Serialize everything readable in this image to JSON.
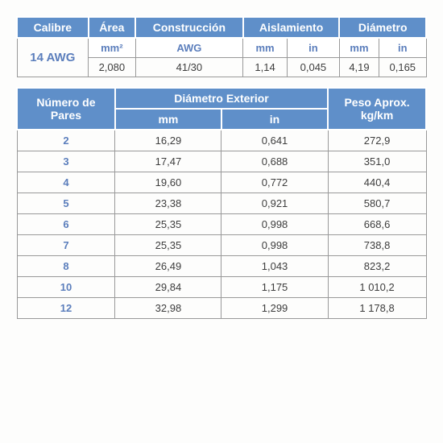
{
  "table1": {
    "headers": {
      "calibre": "Calibre",
      "area": "Área",
      "construccion": "Construcción",
      "aislamiento": "Aislamiento",
      "diametro": "Diámetro"
    },
    "subheaders": {
      "area_unit": "mm²",
      "construccion_unit": "AWG",
      "aislamiento_mm": "mm",
      "aislamiento_in": "in",
      "diametro_mm": "mm",
      "diametro_in": "in"
    },
    "row": {
      "calibre": "14 AWG",
      "area": "2,080",
      "construccion": "41/30",
      "aislamiento_mm": "1,14",
      "aislamiento_in": "0,045",
      "diametro_mm": "4,19",
      "diametro_in": "0,165"
    }
  },
  "table2": {
    "headers": {
      "pares": "Número de Pares",
      "diam_ext": "Diámetro Exterior",
      "peso": "Peso Aprox. kg/km",
      "mm": "mm",
      "in": "in"
    },
    "rows": [
      {
        "pares": "2",
        "mm": "16,29",
        "in": "0,641",
        "peso": "272,9"
      },
      {
        "pares": "3",
        "mm": "17,47",
        "in": "0,688",
        "peso": "351,0"
      },
      {
        "pares": "4",
        "mm": "19,60",
        "in": "0,772",
        "peso": "440,4"
      },
      {
        "pares": "5",
        "mm": "23,38",
        "in": "0,921",
        "peso": "580,7"
      },
      {
        "pares": "6",
        "mm": "25,35",
        "in": "0,998",
        "peso": "668,6"
      },
      {
        "pares": "7",
        "mm": "25,35",
        "in": "0,998",
        "peso": "738,8"
      },
      {
        "pares": "8",
        "mm": "26,49",
        "in": "1,043",
        "peso": "823,2"
      },
      {
        "pares": "10",
        "mm": "29,84",
        "in": "1,175",
        "peso": "1 010,2"
      },
      {
        "pares": "12",
        "mm": "32,98",
        "in": "1,299",
        "peso": "1 178,8"
      }
    ]
  },
  "colors": {
    "header_bg": "#5f8fc9",
    "header_fg": "#ffffff",
    "accent_text": "#5b7ebc",
    "border": "#999999",
    "data_text": "#3d3d3d",
    "background": "#fdfdfc"
  }
}
